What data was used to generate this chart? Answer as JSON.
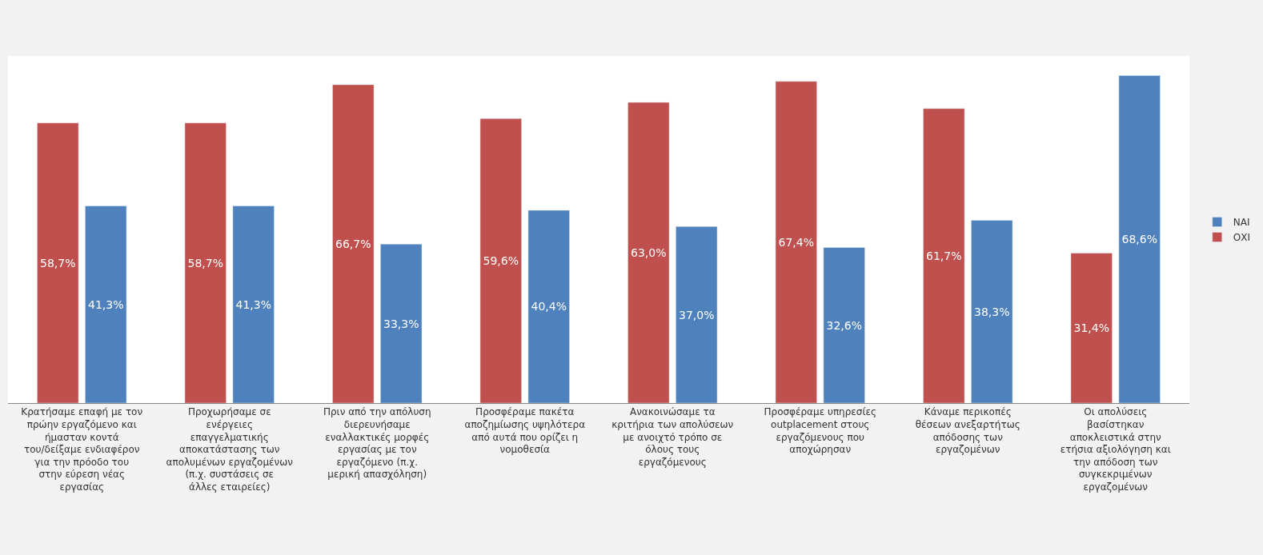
{
  "chart_data": {
    "type": "bar",
    "categories": [
      "Κρατήσαμε επαφή με τον πρώην εργαζόμενο και ήμασταν κοντά του/δείξαμε ενδιαφέρον για την πρόοδο του στην εύρεση νέας εργασίας",
      "Προχωρήσαμε σε ενέργειες επαγγελματικής αποκατάστασης των απολυμένων εργαζομένων (π.χ. συστάσεις σε άλλες εταιρείες)",
      "Πριν από την απόλυση διερευνήσαμε εναλλακτικές μορφές εργασίας με τον εργαζόμενο (π.χ. μερική απασχόληση)",
      "Προσφέραμε πακέτα αποζημίωσης υψηλότερα από αυτά που ορίζει η νομοθεσία",
      "Ανακοινώσαμε τα κριτήρια των απολύσεων με ανοιχτό τρόπο σε όλους τους εργαζόμενους",
      "Προσφέραμε υπηρεσίες outplacement στους εργαζόμενους που αποχώρησαν",
      "Κάναμε περικοπές θέσεων ανεξαρτήτως απόδοσης των εργαζομένων",
      "Οι απολύσεις βασίστηκαν αποκλειστικά στην ετήσια αξιολόγηση και την απόδοση των συγκεκριμένων εργαζομένων"
    ],
    "series": [
      {
        "name": "ΟΧΙ",
        "color": "#c0504d",
        "values": [
          58.7,
          58.7,
          66.7,
          59.6,
          63.0,
          67.4,
          61.7,
          31.4
        ],
        "value_labels": [
          "58,7%",
          "58,7%",
          "66,7%",
          "59,6%",
          "63,0%",
          "67,4%",
          "61,7%",
          "31,4%"
        ]
      },
      {
        "name": "ΝΑΙ",
        "color": "#4f81bd",
        "values": [
          41.3,
          41.3,
          33.3,
          40.4,
          37.0,
          32.6,
          38.3,
          68.6
        ],
        "value_labels": [
          "41,3%",
          "41,3%",
          "33,3%",
          "40,4%",
          "37,0%",
          "32,6%",
          "38,3%",
          "68,6%"
        ]
      }
    ],
    "legend": "right"
  }
}
